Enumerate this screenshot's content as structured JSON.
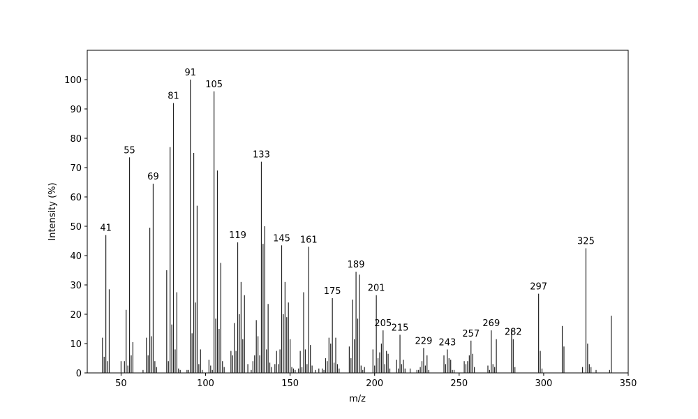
{
  "chart_data": {
    "type": "bar",
    "xlabel": "m/z",
    "ylabel": "Intensity (%)",
    "x": [
      39,
      40,
      41,
      42,
      43,
      50,
      52,
      53,
      54,
      55,
      56,
      57,
      63,
      65,
      66,
      67,
      68,
      69,
      70,
      71,
      77,
      78,
      79,
      80,
      81,
      82,
      83,
      84,
      85,
      89,
      90,
      91,
      92,
      93,
      94,
      95,
      96,
      97,
      98,
      102,
      103,
      104,
      105,
      106,
      107,
      108,
      109,
      110,
      111,
      115,
      116,
      117,
      118,
      119,
      120,
      121,
      122,
      123,
      125,
      127,
      128,
      129,
      130,
      131,
      132,
      133,
      134,
      135,
      136,
      137,
      138,
      139,
      141,
      142,
      143,
      144,
      145,
      146,
      147,
      148,
      149,
      150,
      151,
      152,
      153,
      155,
      156,
      157,
      158,
      159,
      160,
      161,
      162,
      163,
      165,
      167,
      169,
      170,
      171,
      172,
      173,
      174,
      175,
      176,
      177,
      178,
      179,
      185,
      186,
      187,
      188,
      189,
      190,
      191,
      192,
      193,
      194,
      199,
      200,
      201,
      202,
      203,
      204,
      205,
      206,
      207,
      208,
      209,
      213,
      214,
      215,
      216,
      217,
      218,
      221,
      225,
      226,
      227,
      228,
      229,
      230,
      231,
      232,
      241,
      242,
      243,
      244,
      245,
      246,
      247,
      253,
      254,
      255,
      256,
      257,
      258,
      259,
      267,
      268,
      269,
      270,
      271,
      272,
      281,
      282,
      283,
      297,
      298,
      299,
      311,
      312,
      323,
      325,
      326,
      327,
      328,
      331,
      339,
      340
    ],
    "values": [
      12,
      5.5,
      47,
      4,
      28.5,
      4,
      4,
      21.5,
      2.5,
      73.5,
      6,
      10.5,
      1,
      12,
      6,
      49.5,
      12.5,
      64.5,
      4,
      2,
      35,
      4,
      77,
      16.5,
      92,
      8,
      27.5,
      1.5,
      1,
      1,
      1,
      100,
      13.5,
      75,
      24,
      57,
      3,
      8,
      1,
      4.5,
      2.5,
      1,
      96,
      18.5,
      69,
      15,
      37.5,
      4,
      2,
      7.5,
      6,
      17,
      7.5,
      44.5,
      20,
      31,
      11.5,
      26.5,
      3,
      1,
      4,
      6,
      18,
      12.5,
      6,
      72,
      44,
      50,
      8,
      23.5,
      3.5,
      2,
      3,
      7.5,
      3,
      8,
      43.5,
      20,
      31,
      19,
      24,
      11.5,
      2,
      1.5,
      1,
      1.5,
      7.5,
      2,
      27.5,
      8,
      3,
      43,
      9.5,
      2.5,
      1,
      1.5,
      1.5,
      1,
      5,
      4,
      12,
      10,
      25.5,
      3.5,
      12,
      3,
      1.5,
      9,
      5,
      25,
      11.5,
      34.5,
      18.5,
      33.5,
      2.5,
      1,
      2,
      8,
      2.5,
      26.5,
      5,
      7,
      10,
      14.5,
      3,
      7.5,
      6.5,
      1.5,
      4.5,
      1.5,
      13,
      3,
      4.5,
      1.5,
      1.5,
      1,
      1,
      2,
      4,
      8.5,
      2.5,
      6,
      1,
      6,
      3,
      8,
      5,
      4.5,
      1,
      1,
      4,
      3,
      4,
      6,
      11,
      6.5,
      2,
      2.5,
      1,
      14.5,
      3,
      2,
      11.5,
      15,
      11.5,
      2,
      27,
      7.5,
      1.5,
      16,
      9,
      2,
      42.5,
      10,
      3,
      2,
      1,
      1,
      19.5
    ],
    "color": "#222222",
    "annotations": [
      41,
      55,
      69,
      81,
      91,
      105,
      119,
      133,
      145,
      161,
      175,
      189,
      201,
      205,
      215,
      229,
      243,
      257,
      269,
      282,
      297,
      325
    ],
    "xlim": [
      30,
      350
    ],
    "xticks": [
      50,
      100,
      150,
      200,
      250,
      300,
      350
    ],
    "ylim": [
      0,
      110
    ],
    "yticks": [
      0,
      10,
      20,
      30,
      40,
      50,
      60,
      70,
      80,
      90,
      100
    ],
    "grid": false
  }
}
